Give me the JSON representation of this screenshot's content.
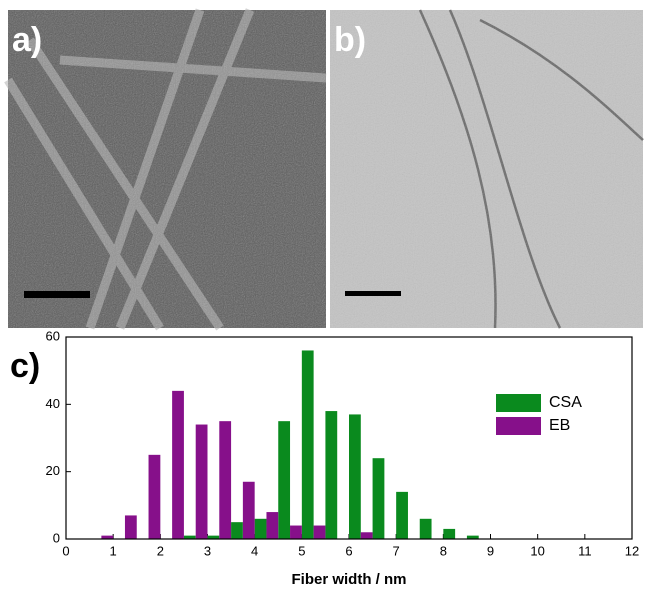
{
  "images": [
    {
      "label": "a)"
    },
    {
      "label": "b)"
    }
  ],
  "chart_data": {
    "type": "bar",
    "panel_label": "c)",
    "x_label": "Fiber width / nm",
    "xlim": [
      0,
      12
    ],
    "xticks": [
      0,
      1,
      2,
      3,
      4,
      5,
      6,
      7,
      8,
      9,
      10,
      11,
      12
    ],
    "ylim": [
      0,
      60
    ],
    "yticks": [
      0,
      20,
      40,
      60
    ],
    "legend": "right",
    "series": [
      {
        "name": "CSA",
        "color": "#0a8a1e",
        "x": [
          2.625,
          3.125,
          3.625,
          4.125,
          4.625,
          5.125,
          5.625,
          6.125,
          6.625,
          7.125,
          7.625,
          8.125,
          8.625
        ],
        "values": [
          1,
          1,
          5,
          6,
          35,
          56,
          38,
          37,
          24,
          14,
          6,
          3,
          1
        ]
      },
      {
        "name": "EB",
        "color": "#86108a",
        "x": [
          0.875,
          1.375,
          1.875,
          2.375,
          2.875,
          3.375,
          3.875,
          4.375,
          4.875,
          5.375,
          6.375
        ],
        "values": [
          1,
          7,
          25,
          44,
          34,
          35,
          17,
          8,
          4,
          4,
          2
        ]
      }
    ]
  }
}
